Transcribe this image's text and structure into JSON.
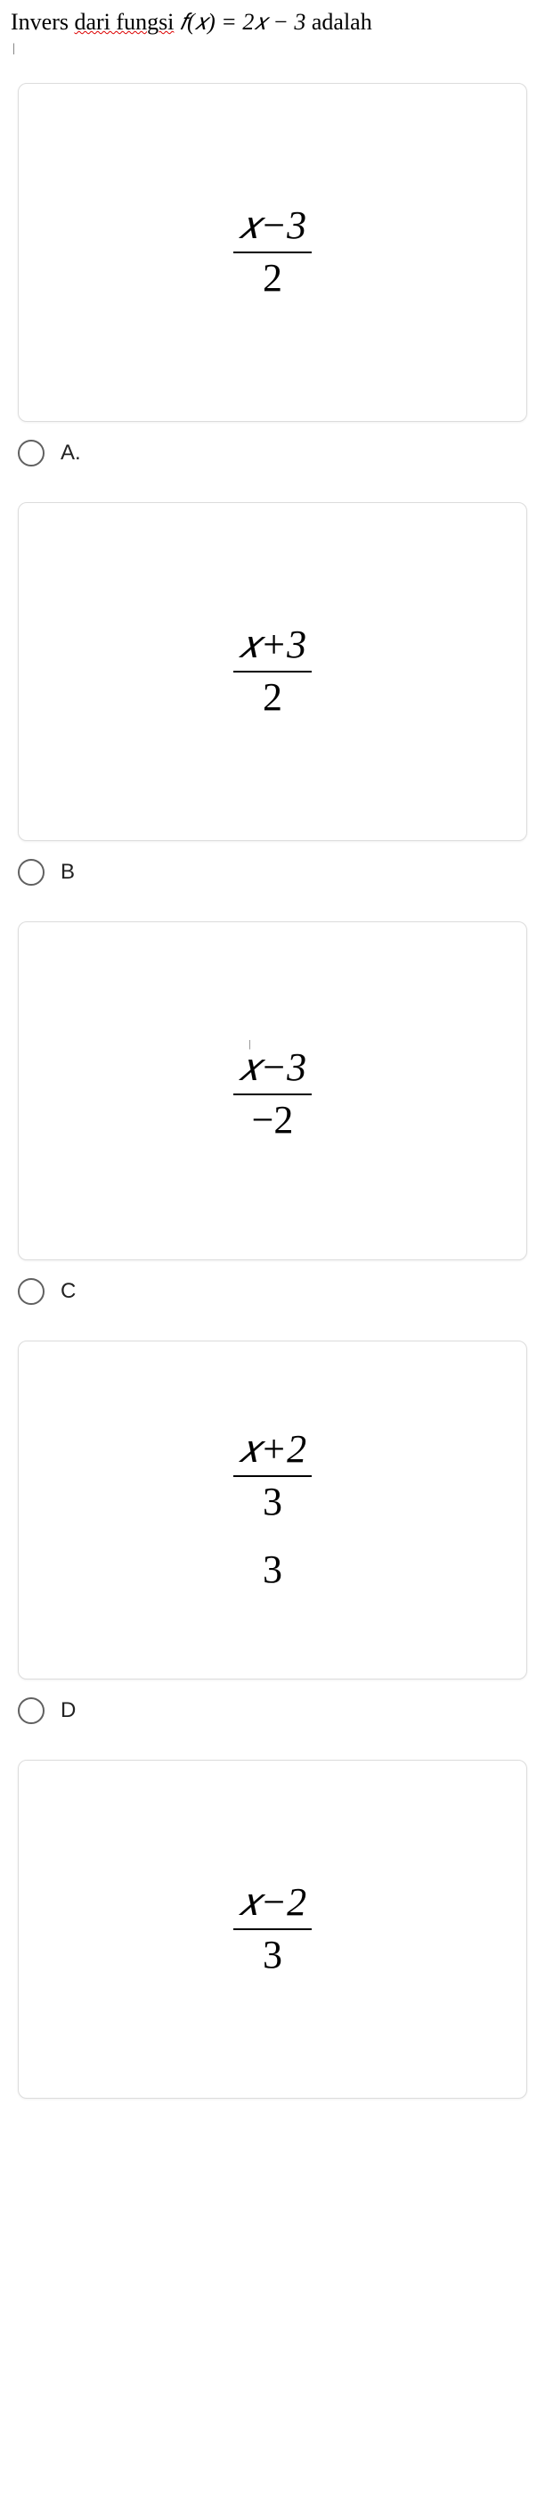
{
  "question": {
    "prefix": "Invers ",
    "underlined": "dari fungsi",
    "func_text": " 𝑓(𝑥) = 2𝑥 − 3 ",
    "suffix": "adalah"
  },
  "options": [
    {
      "id": "A",
      "label": "A.",
      "numerator": "𝑥−3",
      "denominator": "2",
      "extra_below": "",
      "tiny_cursor": false
    },
    {
      "id": "B",
      "label": "B",
      "numerator": "𝑥+3",
      "denominator": "2",
      "extra_below": "",
      "tiny_cursor": false
    },
    {
      "id": "C",
      "label": "C",
      "numerator": "𝑥−3",
      "denominator": "−2",
      "extra_below": "",
      "tiny_cursor": true
    },
    {
      "id": "D",
      "label": "D",
      "numerator": "𝑥+2",
      "denominator": "3",
      "extra_below": "3",
      "tiny_cursor": false
    },
    {
      "id": "E",
      "label": "",
      "numerator": "𝑥−2",
      "denominator": "3",
      "extra_below": "",
      "tiny_cursor": false,
      "no_option_row": true
    }
  ],
  "colors": {
    "card_border": "#dcdcdc",
    "radio_border": "#606060",
    "text": "#000000",
    "background": "#ffffff"
  }
}
